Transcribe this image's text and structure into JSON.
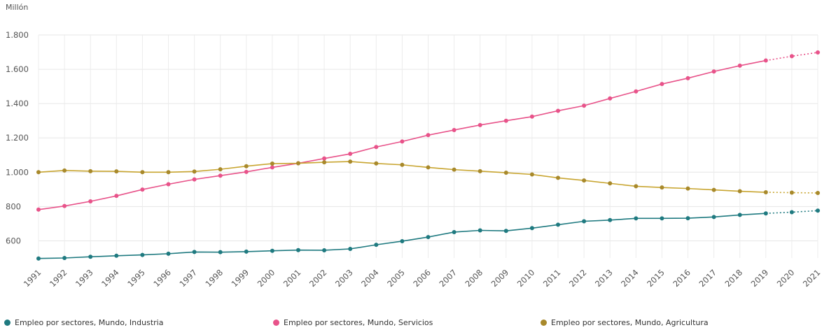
{
  "chart_data": {
    "type": "line",
    "ylabel": "Millón",
    "ylim": [
      500,
      1800
    ],
    "yticks": [
      "600",
      "800",
      "1.000",
      "1.200",
      "1.400",
      "1.600",
      "1.800"
    ],
    "ytick_values": [
      600,
      800,
      1000,
      1200,
      1400,
      1600,
      1800
    ],
    "x": [
      "1991",
      "1992",
      "1993",
      "1994",
      "1995",
      "1996",
      "1997",
      "1998",
      "1999",
      "2000",
      "2001",
      "2002",
      "2003",
      "2004",
      "2005",
      "2006",
      "2007",
      "2008",
      "2009",
      "2010",
      "2011",
      "2012",
      "2013",
      "2014",
      "2015",
      "2016",
      "2017",
      "2018",
      "2019",
      "2020",
      "2021"
    ],
    "projection_start_index": 28,
    "grid": true,
    "legend_position": "bottom",
    "series": [
      {
        "name": "Empleo por sectores, Mundo, Industria",
        "color": "#1f7a80",
        "values": [
          497,
          500,
          507,
          513,
          518,
          525,
          535,
          534,
          537,
          542,
          546,
          545,
          553,
          577,
          598,
          622,
          651,
          661,
          658,
          674,
          694,
          714,
          721,
          731,
          731,
          732,
          739,
          751,
          760,
          767,
          776
        ]
      },
      {
        "name": "Empleo por sectores, Mundo, Servicios",
        "color": "#e8538a",
        "values": [
          782,
          803,
          830,
          862,
          899,
          930,
          958,
          980,
          1002,
          1028,
          1052,
          1080,
          1107,
          1147,
          1179,
          1216,
          1246,
          1275,
          1300,
          1324,
          1358,
          1388,
          1430,
          1471,
          1514,
          1548,
          1587,
          1621,
          1651,
          1676,
          1698
        ]
      },
      {
        "name": "Empleo por sectores, Mundo, Agricultura",
        "color": "#a8892b",
        "line_color": "#c8a530",
        "values": [
          1000,
          1010,
          1006,
          1005,
          1000,
          1000,
          1004,
          1017,
          1035,
          1050,
          1052,
          1058,
          1062,
          1051,
          1043,
          1028,
          1015,
          1006,
          997,
          987,
          967,
          952,
          935,
          918,
          911,
          905,
          897,
          889,
          883,
          881,
          879
        ]
      }
    ]
  }
}
